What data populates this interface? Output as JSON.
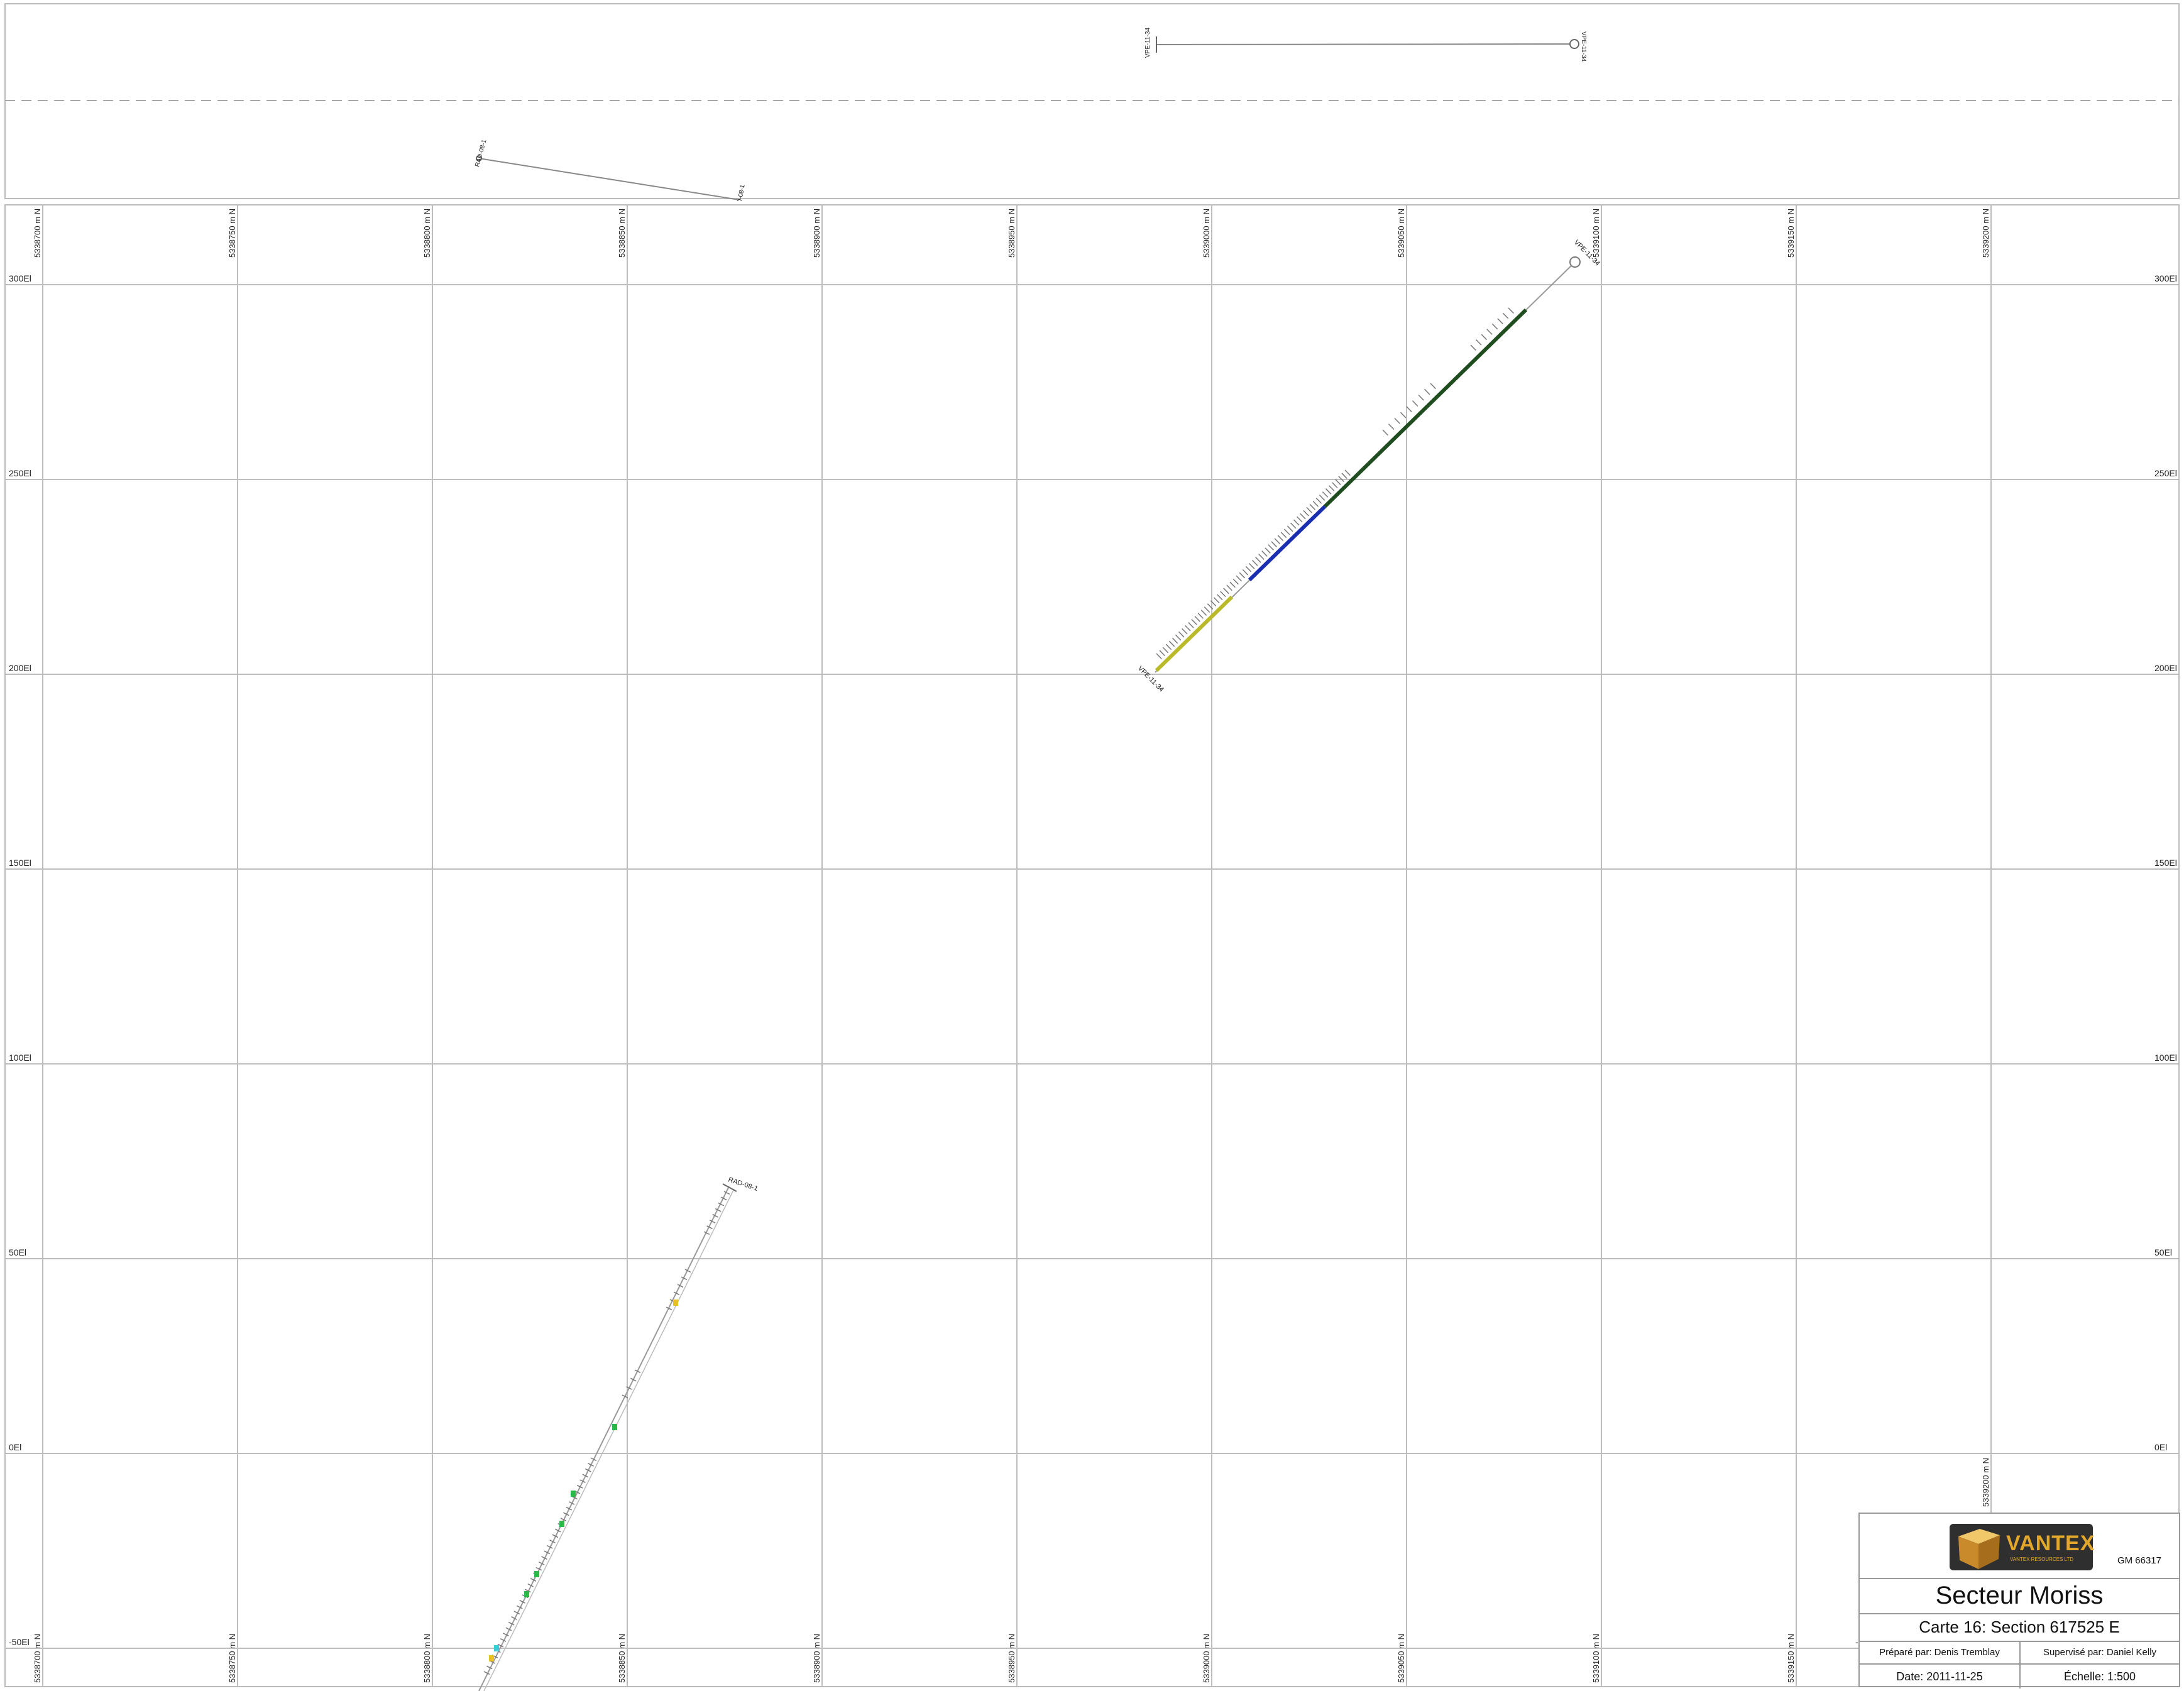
{
  "plan_view": {
    "holes": [
      {
        "collar_label": "VPE-11-34",
        "end_label": "VPE-11-34"
      },
      {
        "collar_label": "RAD-08-1",
        "end_label": "RAD-08-1"
      }
    ]
  },
  "section": {
    "northing_labels": [
      "5338700 m N",
      "5338750 m N",
      "5338800 m N",
      "5338850 m N",
      "5338900 m N",
      "5338950 m N",
      "5339000 m N",
      "5339050 m N",
      "5339100 m N",
      "5339150 m N",
      "5339200 m N"
    ],
    "elevation_labels": [
      "300El",
      "250El",
      "200El",
      "150El",
      "100El",
      "50El",
      "0El",
      "-50El"
    ],
    "holes": [
      {
        "name": "VPE-11-34",
        "collar_label": "VPE-11-34",
        "end_label": "VPE-11-34",
        "colors": {
          "upper": "#1f4d1f",
          "middle": "#1a2fb0",
          "lower": "#b9b92a"
        }
      },
      {
        "name": "RAD-08-1",
        "collar_label": "RAD-08-1",
        "colors": {
          "assay_green": "#2db84a",
          "assay_yellow": "#e8c21e",
          "assay_cyan": "#38d0d8"
        }
      }
    ]
  },
  "title_block": {
    "logo_text": "VANTEX",
    "logo_sub": "VANTEX RESOURCES LTD",
    "gm_number": "GM 66317",
    "title": "Secteur Moriss",
    "subtitle": "Carte 16: Section 617525 E",
    "prepared_by": "Préparé par: Denis Tremblay",
    "supervised_by": "Supervisé par: Daniel Kelly",
    "date": "Date: 2011-11-25",
    "scale": "Échelle: 1:500"
  }
}
